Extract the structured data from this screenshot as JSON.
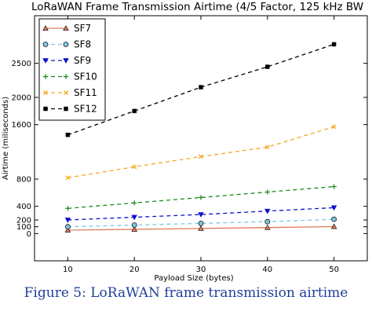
{
  "chart_data": {
    "type": "line",
    "title": "LoRaWAN Frame Transmission Airtime (4/5 Factor, 125 kHz BW",
    "xlabel": "Payload Size (bytes)",
    "ylabel": "Airtime (miliseconds)",
    "x": [
      10,
      20,
      30,
      40,
      50
    ],
    "xlim": [
      5,
      55
    ],
    "ylim": [
      -400,
      3200
    ],
    "xticks": [
      "10",
      "20",
      "30",
      "40",
      "50"
    ],
    "yticks": [
      {
        "value": 0,
        "label": "0"
      },
      {
        "value": 100,
        "label": "100"
      },
      {
        "value": 200,
        "label": "200"
      },
      {
        "value": 400,
        "label": "400"
      },
      {
        "value": 800,
        "label": "800"
      },
      {
        "value": 1600,
        "label": "1600"
      },
      {
        "value": 2000,
        "label": "2000"
      },
      {
        "value": 2500,
        "label": "2500"
      }
    ],
    "legend_position": "top-left",
    "grid": false,
    "series": [
      {
        "name": "SF7",
        "color": "#e07b5a",
        "dash": "solid",
        "marker": "triangle-up",
        "values": [
          50,
          62,
          75,
          88,
          102
        ]
      },
      {
        "name": "SF8",
        "color": "#7ec7e0",
        "dash": "dashed",
        "marker": "circle",
        "values": [
          100,
          125,
          150,
          175,
          210
        ]
      },
      {
        "name": "SF9",
        "color": "#1010cc",
        "dash": "dashed",
        "marker": "triangle-down",
        "values": [
          200,
          240,
          280,
          330,
          380
        ]
      },
      {
        "name": "SF10",
        "color": "#1a8a1a",
        "dash": "dashed",
        "marker": "plus",
        "values": [
          370,
          450,
          530,
          610,
          690
        ]
      },
      {
        "name": "SF11",
        "color": "#f5a623",
        "dash": "dashed",
        "marker": "x",
        "values": [
          820,
          980,
          1130,
          1270,
          1570
        ]
      },
      {
        "name": "SF12",
        "color": "#000000",
        "dash": "dashed",
        "marker": "square",
        "values": [
          1450,
          1800,
          2150,
          2450,
          2780
        ]
      }
    ]
  },
  "figure": {
    "caption": "Figure 5: LoRaWAN frame transmission airtime"
  }
}
